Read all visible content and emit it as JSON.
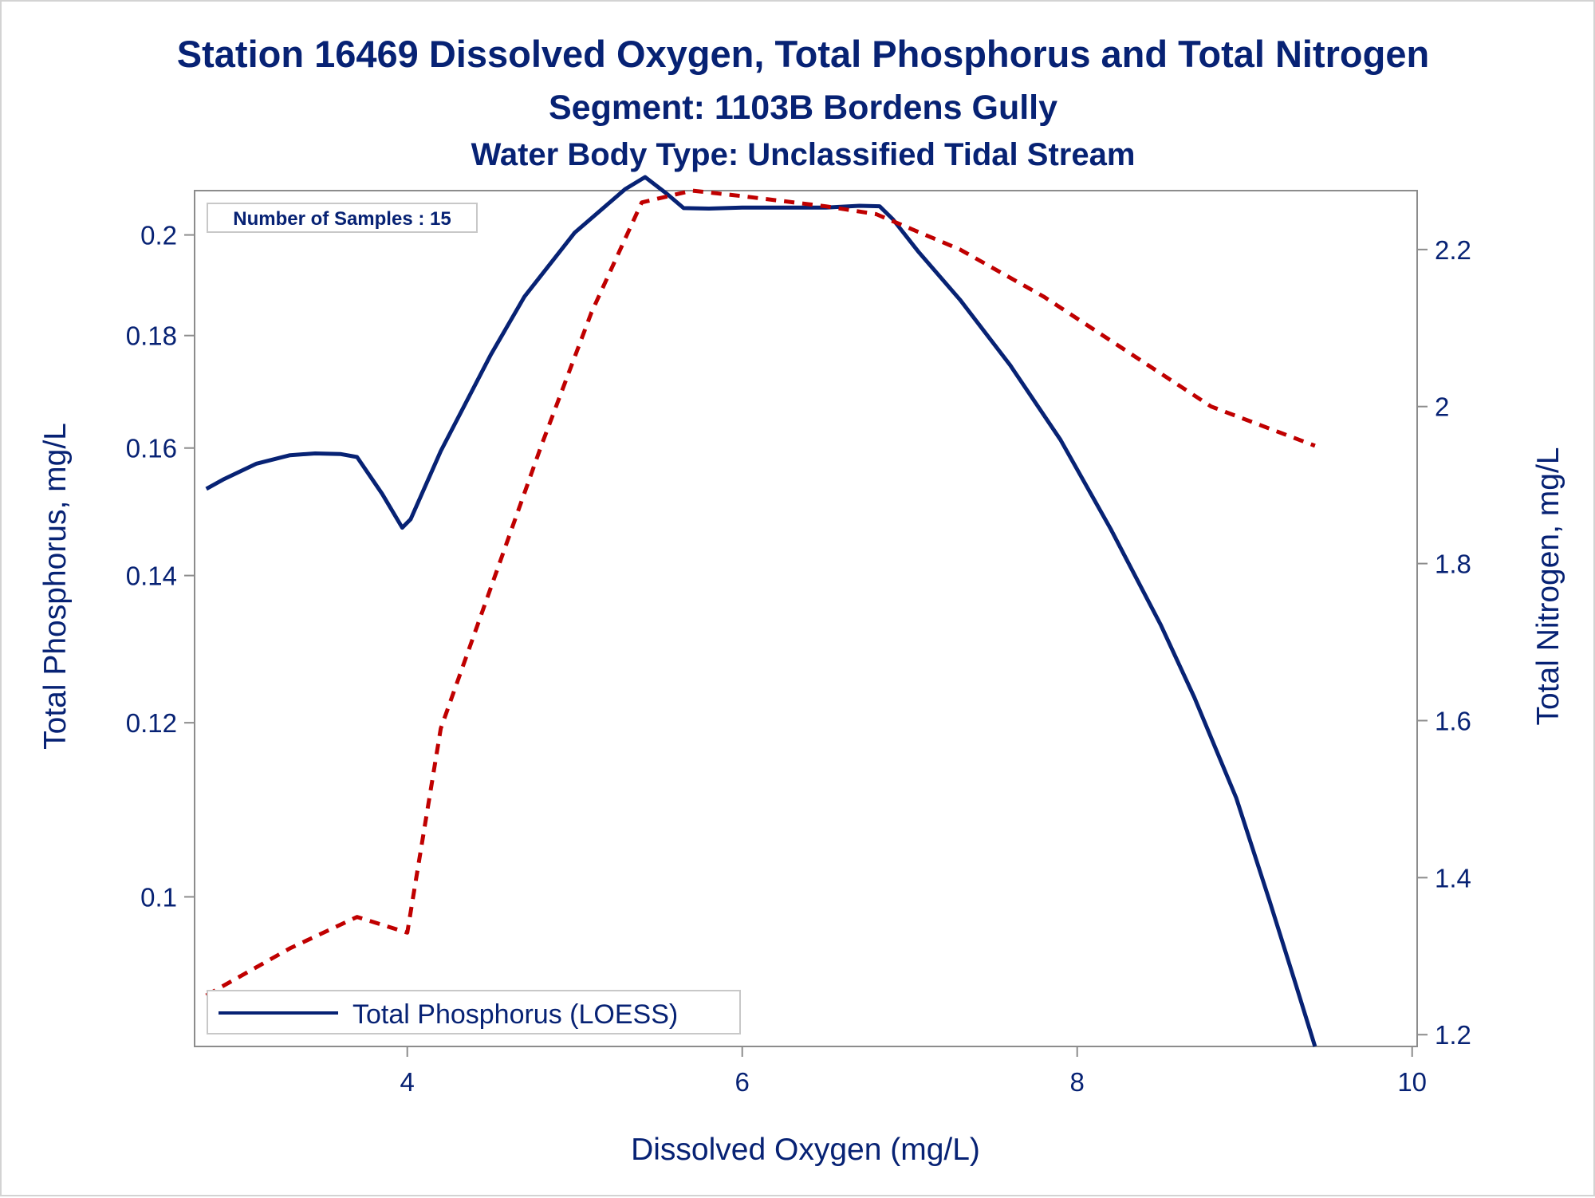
{
  "colors": {
    "text": "#072274",
    "phosphorus_line": "#072274",
    "nitrogen_line": "#c00000",
    "plot_border": "#8c8c8c",
    "frame": "#d3d3d3"
  },
  "chart_data": {
    "type": "line",
    "title": "Station 16469  Dissolved Oxygen, Total Phosphorus and Total Nitrogen",
    "subtitle": "Segment: 1103B  Bordens Gully",
    "subtitle2": "Water Body Type: Unclassified Tidal Stream",
    "xlabel": "Dissolved Oxygen (mg/L)",
    "ylabel_left": "Total Phosphorus, mg/L",
    "ylabel_right": "Total Nitrogen, mg/L",
    "inset_text": "Number of Samples : 15",
    "legend_label": "Total Phosphorus (LOESS)",
    "legend_position": "bottom-left",
    "grid": false,
    "xlim": [
      2.73,
      10.03
    ],
    "ylim_left": [
      0.0855,
      0.2095
    ],
    "ylim_left_scale": "log",
    "ylim_right": [
      1.185,
      2.275
    ],
    "x_ticks": [
      4,
      6,
      8,
      10
    ],
    "y_left_ticks": [
      0.1,
      0.12,
      0.14,
      0.16,
      0.18,
      0.2
    ],
    "y_right_ticks": [
      1.2,
      1.4,
      1.6,
      1.8,
      2,
      2.2
    ],
    "series": [
      {
        "name": "Total Phosphorus (LOESS)",
        "axis": "left",
        "style": "solid",
        "x": [
          2.8,
          2.9,
          3.1,
          3.3,
          3.45,
          3.6,
          3.7,
          3.85,
          3.97,
          4.02,
          4.2,
          4.5,
          4.7,
          5.0,
          5.3,
          5.42,
          5.55,
          5.65,
          5.8,
          6.0,
          6.3,
          6.5,
          6.7,
          6.82,
          6.9,
          7.05,
          7.3,
          7.6,
          7.9,
          8.2,
          8.5,
          8.7,
          8.95,
          9.15,
          9.3,
          9.42
        ],
        "y": [
          0.1533,
          0.1548,
          0.1574,
          0.1588,
          0.1591,
          0.159,
          0.1585,
          0.1525,
          0.1472,
          0.1485,
          0.1595,
          0.1765,
          0.1875,
          0.2005,
          0.2098,
          0.2125,
          0.2088,
          0.2057,
          0.2056,
          0.2058,
          0.2058,
          0.2058,
          0.2062,
          0.2061,
          0.2033,
          0.1966,
          0.1869,
          0.1745,
          0.1614,
          0.147,
          0.1329,
          0.1232,
          0.1109,
          0.0995,
          0.0915,
          0.0855
        ]
      },
      {
        "name": "Total Nitrogen",
        "axis": "right",
        "style": "dashed",
        "x": [
          2.8,
          3.3,
          3.7,
          4.0,
          4.2,
          4.5,
          4.8,
          5.1,
          5.4,
          5.7,
          6.0,
          6.5,
          6.8,
          7.3,
          7.8,
          8.3,
          8.8,
          9.42
        ],
        "y": [
          1.25,
          1.31,
          1.35,
          1.33,
          1.59,
          1.77,
          1.95,
          2.12,
          2.26,
          2.275,
          2.268,
          2.255,
          2.245,
          2.2,
          2.14,
          2.07,
          2.0,
          1.95
        ]
      }
    ]
  }
}
